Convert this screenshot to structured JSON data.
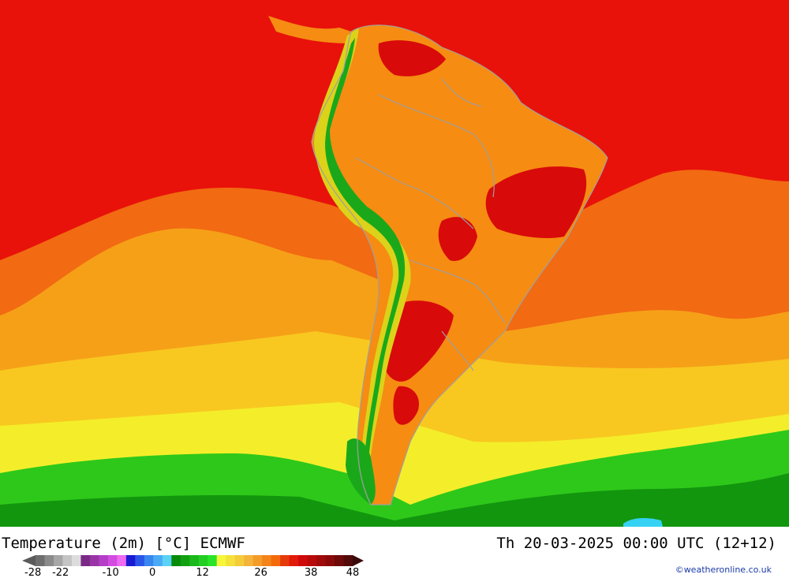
{
  "title_left": "Temperature (2m) [°C] ECMWF",
  "title_right": "Th 20-03-2025 00:00 UTC (12+12)",
  "credit": "©weatheronline.co.uk",
  "legend": {
    "tick_labels": [
      "-28",
      "-22",
      "-10",
      "0",
      "12",
      "26",
      "38",
      "48"
    ],
    "tick_values": [
      -28,
      -22,
      -10,
      0,
      12,
      26,
      38,
      48
    ],
    "colors": [
      "#6e6e6e",
      "#8a8a8a",
      "#a6a6a6",
      "#c4c4c4",
      "#dcdcdc",
      "#7a2a86",
      "#9a34a6",
      "#b43ec8",
      "#d24ce0",
      "#ee6af0",
      "#1a1ad2",
      "#2a56e8",
      "#3a86f0",
      "#4aaaf4",
      "#5ad2f8",
      "#0a8a0a",
      "#12a012",
      "#1ab81a",
      "#22ce22",
      "#2ae42a",
      "#f6f63a",
      "#f4e23a",
      "#f4cc3a",
      "#f4b43a",
      "#f49c2a",
      "#f4841a",
      "#f46a0a",
      "#e63a0a",
      "#e21a0a",
      "#d00a0a",
      "#b80a0a",
      "#a00a0a",
      "#8a0a0a",
      "#6e0a0a",
      "#520a0a"
    ]
  },
  "map_colors": {
    "ocean_tropical": "#e8120a",
    "ocean_warm": "#f26a12",
    "ocean_mild": "#f6a018",
    "ocean_cool": "#f8c820",
    "ocean_cold_yellow": "#f4ee2a",
    "ocean_green": "#2ec81a",
    "ocean_dark_green": "#12960e",
    "land_orange": "#f68c12",
    "land_hot": "#d80a0a",
    "andes_green": "#1aa81a",
    "andes_yellow": "#dcd21a",
    "border": "#a0a0a0",
    "cyan_patch": "#36d2f4"
  }
}
